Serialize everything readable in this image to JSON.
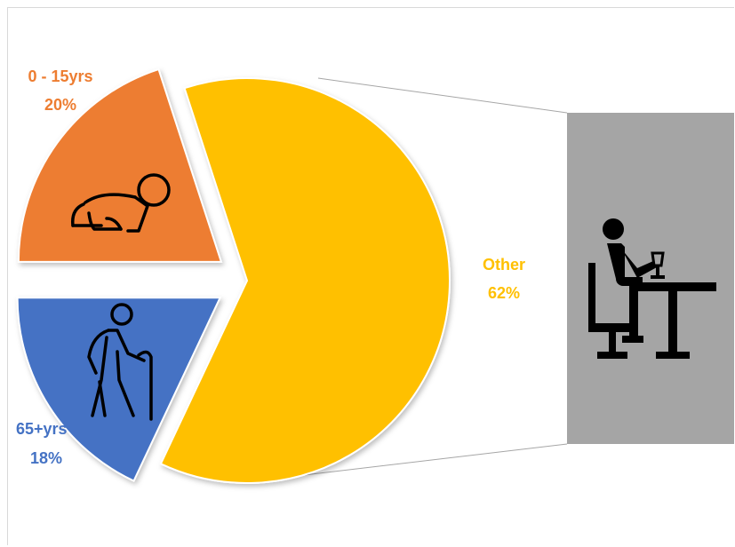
{
  "chart_data": {
    "type": "pie",
    "title": "",
    "slices": [
      {
        "name": "0 - 15yrs",
        "value": 20,
        "label_pct": "20%",
        "color": "#ED7D31",
        "icon": "crawling-baby-icon"
      },
      {
        "name": "65+yrs",
        "value": 18,
        "label_pct": "18%",
        "color": "#4472C4",
        "icon": "elderly-person-cane-icon"
      },
      {
        "name": "Other",
        "value": 62,
        "label_pct": "62%",
        "color": "#FFC000",
        "icon": "person-at-desk-icon"
      }
    ],
    "exploded": true,
    "breakout_panel": {
      "color": "#A5A5A5",
      "icon": "person-at-desk-icon"
    },
    "legend": "none"
  }
}
